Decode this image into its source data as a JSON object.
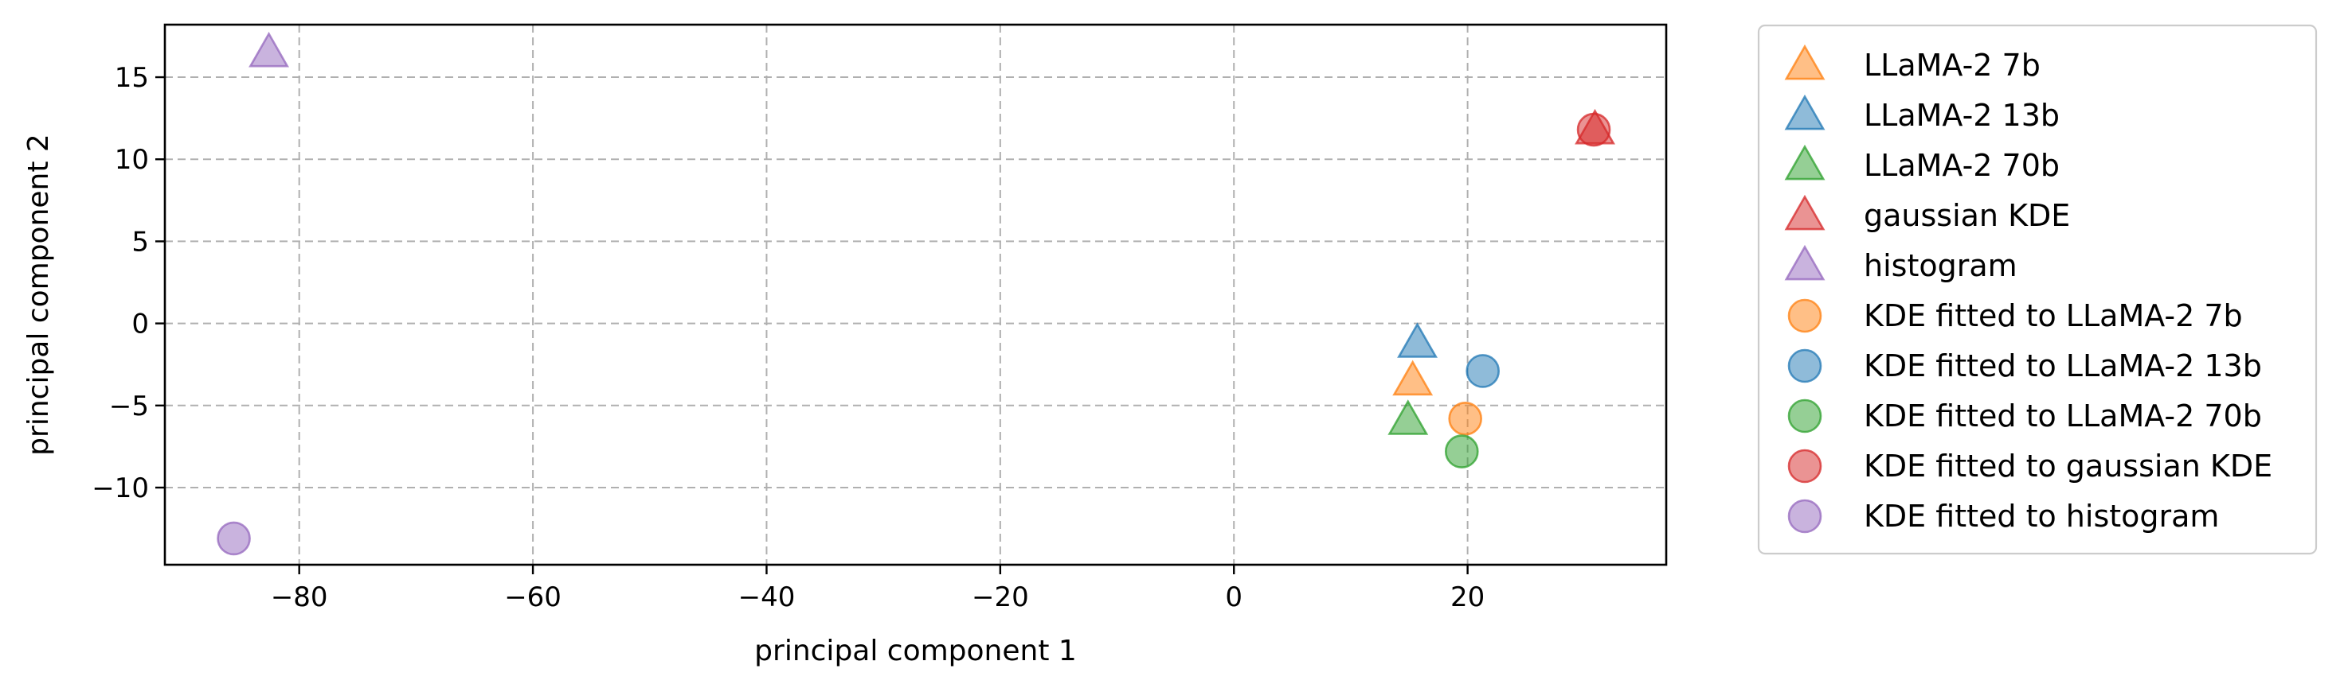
{
  "chart_data": {
    "type": "scatter",
    "title": "",
    "xlabel": "principal component 1",
    "ylabel": "principal component 2",
    "xlim": [
      -91.5,
      37
    ],
    "ylim": [
      -14.7,
      18.2
    ],
    "xticks": [
      -80,
      -60,
      -40,
      -20,
      0,
      20
    ],
    "yticks": [
      -10,
      -5,
      0,
      5,
      10,
      15
    ],
    "xtick_labels": [
      "−80",
      "−60",
      "−40",
      "−20",
      "0",
      "20"
    ],
    "ytick_labels": [
      "−10",
      "−5",
      "0",
      "5",
      "10",
      "15"
    ],
    "grid": true,
    "legend_position": "outside-right",
    "series": [
      {
        "name": "LLaMA-2 7b",
        "marker": "triangle",
        "color": "#ff7f0e",
        "points": [
          [
            15.3,
            -3.5
          ]
        ]
      },
      {
        "name": "LLaMA-2 13b",
        "marker": "triangle",
        "color": "#1f77b4",
        "points": [
          [
            15.7,
            -1.2
          ]
        ]
      },
      {
        "name": "LLaMA-2 70b",
        "marker": "triangle",
        "color": "#2ca02c",
        "points": [
          [
            14.9,
            -5.9
          ]
        ]
      },
      {
        "name": "gaussian KDE",
        "marker": "triangle",
        "color": "#d62728",
        "points": [
          [
            30.9,
            11.8
          ]
        ]
      },
      {
        "name": "histogram",
        "marker": "triangle",
        "color": "#9467bd",
        "points": [
          [
            -82.6,
            16.5
          ]
        ]
      },
      {
        "name": "KDE fitted to LLaMA-2 7b",
        "marker": "circle",
        "color": "#ff7f0e",
        "points": [
          [
            19.8,
            -5.8
          ]
        ]
      },
      {
        "name": "KDE fitted to LLaMA-2 13b",
        "marker": "circle",
        "color": "#1f77b4",
        "points": [
          [
            21.3,
            -2.9
          ]
        ]
      },
      {
        "name": "KDE fitted to LLaMA-2 70b",
        "marker": "circle",
        "color": "#2ca02c",
        "points": [
          [
            19.5,
            -7.8
          ]
        ]
      },
      {
        "name": "KDE fitted to gaussian KDE",
        "marker": "circle",
        "color": "#d62728",
        "points": [
          [
            30.8,
            11.8
          ]
        ]
      },
      {
        "name": "KDE fitted to histogram",
        "marker": "circle",
        "color": "#9467bd",
        "points": [
          [
            -85.6,
            -13.1
          ]
        ]
      }
    ]
  }
}
